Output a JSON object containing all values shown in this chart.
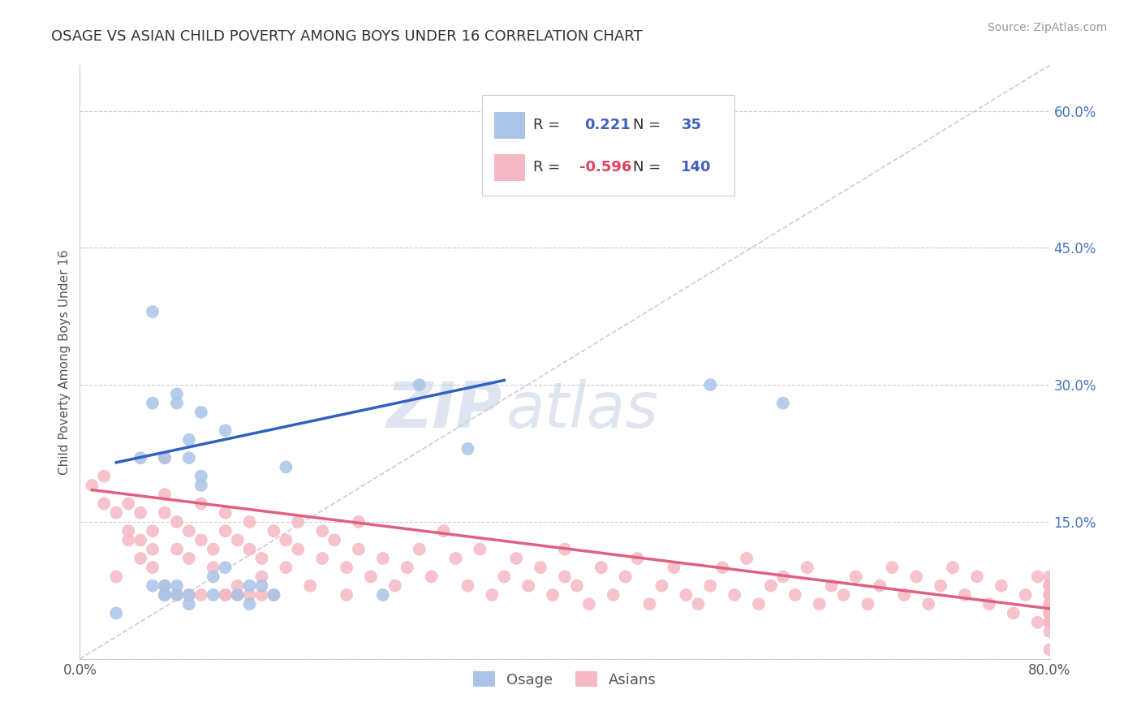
{
  "title": "OSAGE VS ASIAN CHILD POVERTY AMONG BOYS UNDER 16 CORRELATION CHART",
  "source": "Source: ZipAtlas.com",
  "ylabel": "Child Poverty Among Boys Under 16",
  "xlim": [
    0.0,
    0.8
  ],
  "ylim": [
    0.0,
    0.65
  ],
  "background_color": "#ffffff",
  "grid_color": "#cccccc",
  "osage_color": "#aac4e8",
  "asian_color": "#f5b8c4",
  "osage_line_color": "#3060c0",
  "asian_line_color": "#e06080",
  "diagonal_color": "#cccccc",
  "legend_text_color": "#4060c0",
  "title_color": "#333333",
  "osage_line_x0": 0.03,
  "osage_line_x1": 0.35,
  "osage_line_y0": 0.215,
  "osage_line_y1": 0.305,
  "asian_line_x0": 0.01,
  "asian_line_x1": 0.8,
  "asian_line_y0": 0.185,
  "asian_line_y1": 0.055,
  "osage_x": [
    0.03,
    0.05,
    0.06,
    0.06,
    0.06,
    0.07,
    0.07,
    0.07,
    0.07,
    0.08,
    0.08,
    0.08,
    0.08,
    0.09,
    0.09,
    0.09,
    0.09,
    0.1,
    0.1,
    0.1,
    0.11,
    0.11,
    0.12,
    0.12,
    0.13,
    0.14,
    0.14,
    0.15,
    0.16,
    0.17,
    0.25,
    0.28,
    0.32,
    0.52,
    0.58
  ],
  "osage_y": [
    0.05,
    0.22,
    0.38,
    0.28,
    0.08,
    0.07,
    0.08,
    0.22,
    0.07,
    0.29,
    0.28,
    0.08,
    0.07,
    0.22,
    0.24,
    0.06,
    0.07,
    0.27,
    0.19,
    0.2,
    0.09,
    0.07,
    0.1,
    0.25,
    0.07,
    0.08,
    0.06,
    0.08,
    0.07,
    0.21,
    0.07,
    0.3,
    0.23,
    0.3,
    0.28
  ],
  "asian_x": [
    0.01,
    0.02,
    0.02,
    0.03,
    0.03,
    0.04,
    0.04,
    0.04,
    0.05,
    0.05,
    0.05,
    0.06,
    0.06,
    0.06,
    0.07,
    0.07,
    0.07,
    0.07,
    0.07,
    0.08,
    0.08,
    0.08,
    0.09,
    0.09,
    0.09,
    0.1,
    0.1,
    0.1,
    0.11,
    0.11,
    0.12,
    0.12,
    0.12,
    0.12,
    0.13,
    0.13,
    0.13,
    0.14,
    0.14,
    0.14,
    0.15,
    0.15,
    0.15,
    0.16,
    0.16,
    0.17,
    0.17,
    0.18,
    0.18,
    0.19,
    0.2,
    0.2,
    0.21,
    0.22,
    0.22,
    0.23,
    0.23,
    0.24,
    0.25,
    0.26,
    0.27,
    0.28,
    0.29,
    0.3,
    0.31,
    0.32,
    0.33,
    0.34,
    0.35,
    0.36,
    0.37,
    0.38,
    0.39,
    0.4,
    0.4,
    0.41,
    0.42,
    0.43,
    0.44,
    0.45,
    0.46,
    0.47,
    0.48,
    0.49,
    0.5,
    0.51,
    0.52,
    0.53,
    0.54,
    0.55,
    0.56,
    0.57,
    0.58,
    0.59,
    0.6,
    0.61,
    0.62,
    0.63,
    0.64,
    0.65,
    0.66,
    0.67,
    0.68,
    0.69,
    0.7,
    0.71,
    0.72,
    0.73,
    0.74,
    0.75,
    0.76,
    0.77,
    0.78,
    0.79,
    0.79,
    0.8,
    0.8,
    0.8,
    0.8,
    0.8,
    0.8,
    0.8,
    0.8,
    0.8,
    0.8,
    0.8,
    0.8,
    0.8,
    0.8,
    0.8,
    0.8,
    0.8,
    0.8,
    0.8,
    0.8,
    0.8
  ],
  "asian_y": [
    0.19,
    0.17,
    0.2,
    0.16,
    0.09,
    0.14,
    0.17,
    0.13,
    0.16,
    0.13,
    0.11,
    0.12,
    0.14,
    0.1,
    0.18,
    0.16,
    0.08,
    0.22,
    0.07,
    0.15,
    0.12,
    0.07,
    0.14,
    0.11,
    0.07,
    0.17,
    0.13,
    0.07,
    0.12,
    0.1,
    0.16,
    0.14,
    0.07,
    0.07,
    0.13,
    0.08,
    0.07,
    0.15,
    0.12,
    0.07,
    0.11,
    0.09,
    0.07,
    0.14,
    0.07,
    0.13,
    0.1,
    0.12,
    0.15,
    0.08,
    0.14,
    0.11,
    0.13,
    0.1,
    0.07,
    0.12,
    0.15,
    0.09,
    0.11,
    0.08,
    0.1,
    0.12,
    0.09,
    0.14,
    0.11,
    0.08,
    0.12,
    0.07,
    0.09,
    0.11,
    0.08,
    0.1,
    0.07,
    0.09,
    0.12,
    0.08,
    0.06,
    0.1,
    0.07,
    0.09,
    0.11,
    0.06,
    0.08,
    0.1,
    0.07,
    0.06,
    0.08,
    0.1,
    0.07,
    0.11,
    0.06,
    0.08,
    0.09,
    0.07,
    0.1,
    0.06,
    0.08,
    0.07,
    0.09,
    0.06,
    0.08,
    0.1,
    0.07,
    0.09,
    0.06,
    0.08,
    0.1,
    0.07,
    0.09,
    0.06,
    0.08,
    0.05,
    0.07,
    0.09,
    0.04,
    0.08,
    0.05,
    0.07,
    0.09,
    0.06,
    0.04,
    0.08,
    0.05,
    0.07,
    0.01,
    0.06,
    0.04,
    0.08,
    0.05,
    0.07,
    0.03,
    0.06,
    0.08,
    0.05,
    0.07,
    0.04
  ]
}
